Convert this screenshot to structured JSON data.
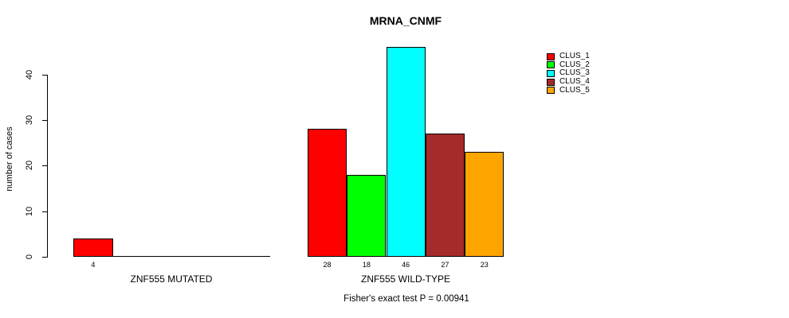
{
  "chart_data": {
    "type": "bar",
    "title": "MRNA_CNMF",
    "ylabel": "number of cases",
    "xlabel": "",
    "yticks": [
      0,
      10,
      20,
      30,
      40
    ],
    "ylim": [
      0,
      46
    ],
    "grid": false,
    "legend_position": "top-right",
    "groups": [
      {
        "label": "ZNF555 MUTATED",
        "values": [
          4,
          0,
          0,
          0,
          0
        ],
        "bar_labels": [
          "4"
        ]
      },
      {
        "label": "ZNF555 WILD-TYPE",
        "values": [
          28,
          18,
          46,
          27,
          23
        ],
        "bar_labels": [
          "28",
          "18",
          "46",
          "27",
          "23"
        ]
      }
    ],
    "series_colors": [
      "#ff0000",
      "#00ff00",
      "#00ffff",
      "#a52a2a",
      "#ffa500"
    ],
    "legend": [
      {
        "label": "CLUS_1",
        "color": "#ff0000"
      },
      {
        "label": "CLUS_2",
        "color": "#00ff00"
      },
      {
        "label": "CLUS_3",
        "color": "#00ffff"
      },
      {
        "label": "CLUS_4",
        "color": "#a52a2a"
      },
      {
        "label": "CLUS_5",
        "color": "#ffa500"
      }
    ],
    "note": "Fisher's exact test P = 0.00941"
  }
}
